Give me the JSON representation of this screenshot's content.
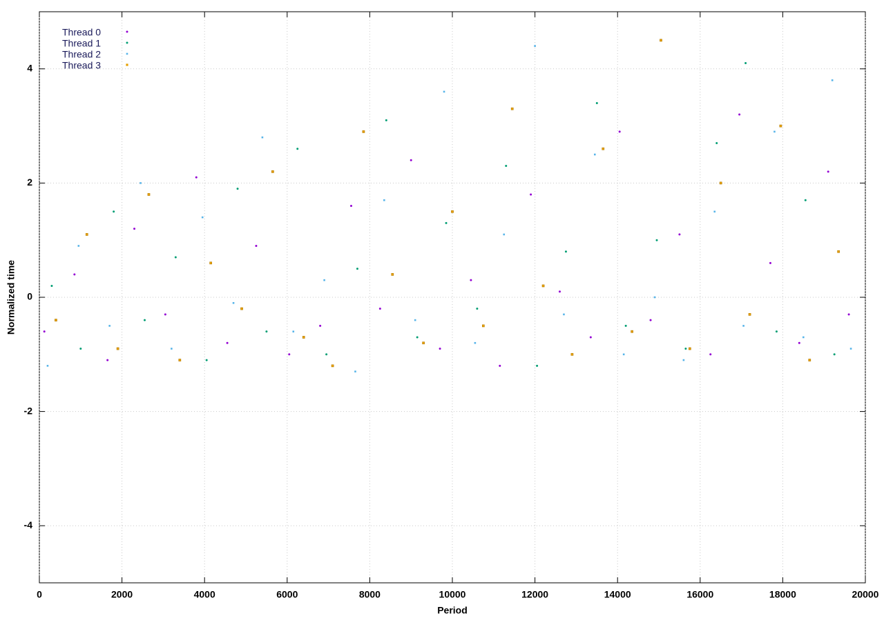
{
  "chart_data": {
    "type": "scatter",
    "x_label": "Period",
    "y_label": "Normalized time",
    "xlim": [
      0,
      20000
    ],
    "xticks": [
      0,
      2000,
      4000,
      6000,
      8000,
      10000,
      12000,
      14000,
      16000,
      18000,
      20000
    ],
    "ylim": [
      -5,
      5
    ],
    "yticks": [
      -4,
      -2,
      0,
      2,
      4
    ],
    "grid": true,
    "legend": "top-left",
    "series": [
      {
        "name": "Thread 0",
        "color": "#9400d3",
        "x": [
          120,
          850,
          1650,
          2300,
          3050,
          3800,
          4550,
          5250,
          6050,
          6800,
          7550,
          8250,
          9000,
          9700,
          10450,
          11150,
          11900,
          12600,
          13350,
          14050,
          14800,
          15500,
          16250,
          16950,
          17700,
          18400,
          19100,
          19600
        ],
        "values": [
          -0.6,
          0.4,
          -1.1,
          1.2,
          -0.3,
          2.1,
          -0.8,
          0.9,
          -1.0,
          -0.5,
          1.6,
          -0.2,
          2.4,
          -0.9,
          0.3,
          -1.2,
          1.8,
          0.1,
          -0.7,
          2.9,
          -0.4,
          1.1,
          -1.0,
          3.2,
          0.6,
          -0.8,
          2.2,
          -0.3
        ]
      },
      {
        "name": "Thread 1",
        "color": "#009e73",
        "x": [
          300,
          1000,
          1800,
          2550,
          3300,
          4050,
          4800,
          5500,
          6250,
          6950,
          7700,
          8400,
          9150,
          9850,
          10600,
          11300,
          12050,
          12750,
          13500,
          14200,
          14950,
          15650,
          16400,
          17100,
          17850,
          18550,
          19250
        ],
        "values": [
          0.2,
          -0.9,
          1.5,
          -0.4,
          0.7,
          -1.1,
          1.9,
          -0.6,
          2.6,
          -1.0,
          0.5,
          3.1,
          -0.7,
          1.3,
          -0.2,
          2.3,
          -1.2,
          0.8,
          3.4,
          -0.5,
          1.0,
          -0.9,
          2.7,
          4.1,
          -0.6,
          1.7,
          -1.0
        ]
      },
      {
        "name": "Thread 2",
        "color": "#56b4e9",
        "x": [
          200,
          950,
          1700,
          2450,
          3200,
          3950,
          4700,
          5400,
          6150,
          6900,
          7650,
          8350,
          9100,
          9800,
          10550,
          11250,
          12000,
          12700,
          13450,
          14150,
          14900,
          15600,
          16350,
          17050,
          17800,
          18500,
          19200,
          19650
        ],
        "values": [
          -1.2,
          0.9,
          -0.5,
          2.0,
          -0.9,
          1.4,
          -0.1,
          2.8,
          -0.6,
          0.3,
          -1.3,
          1.7,
          -0.4,
          3.6,
          -0.8,
          1.1,
          4.4,
          -0.3,
          2.5,
          -1.0,
          0.0,
          -1.1,
          1.5,
          -0.5,
          2.9,
          -0.7,
          3.8,
          -0.9
        ]
      },
      {
        "name": "Thread 3",
        "color": "#e69f00",
        "x": [
          400,
          1150,
          1900,
          2650,
          3400,
          4150,
          4900,
          5650,
          6400,
          7100,
          7850,
          8550,
          9300,
          10000,
          10750,
          11450,
          12200,
          12900,
          13650,
          14350,
          15050,
          15750,
          16500,
          17200,
          17950,
          18650,
          19350
        ],
        "values": [
          -0.4,
          1.1,
          -0.9,
          1.8,
          -1.1,
          0.6,
          -0.2,
          2.2,
          -0.7,
          -1.2,
          2.9,
          0.4,
          -0.8,
          1.5,
          -0.5,
          3.3,
          0.2,
          -1.0,
          2.6,
          -0.6,
          4.5,
          -0.9,
          2.0,
          -0.3,
          3.0,
          -1.1,
          0.8
        ]
      }
    ]
  }
}
